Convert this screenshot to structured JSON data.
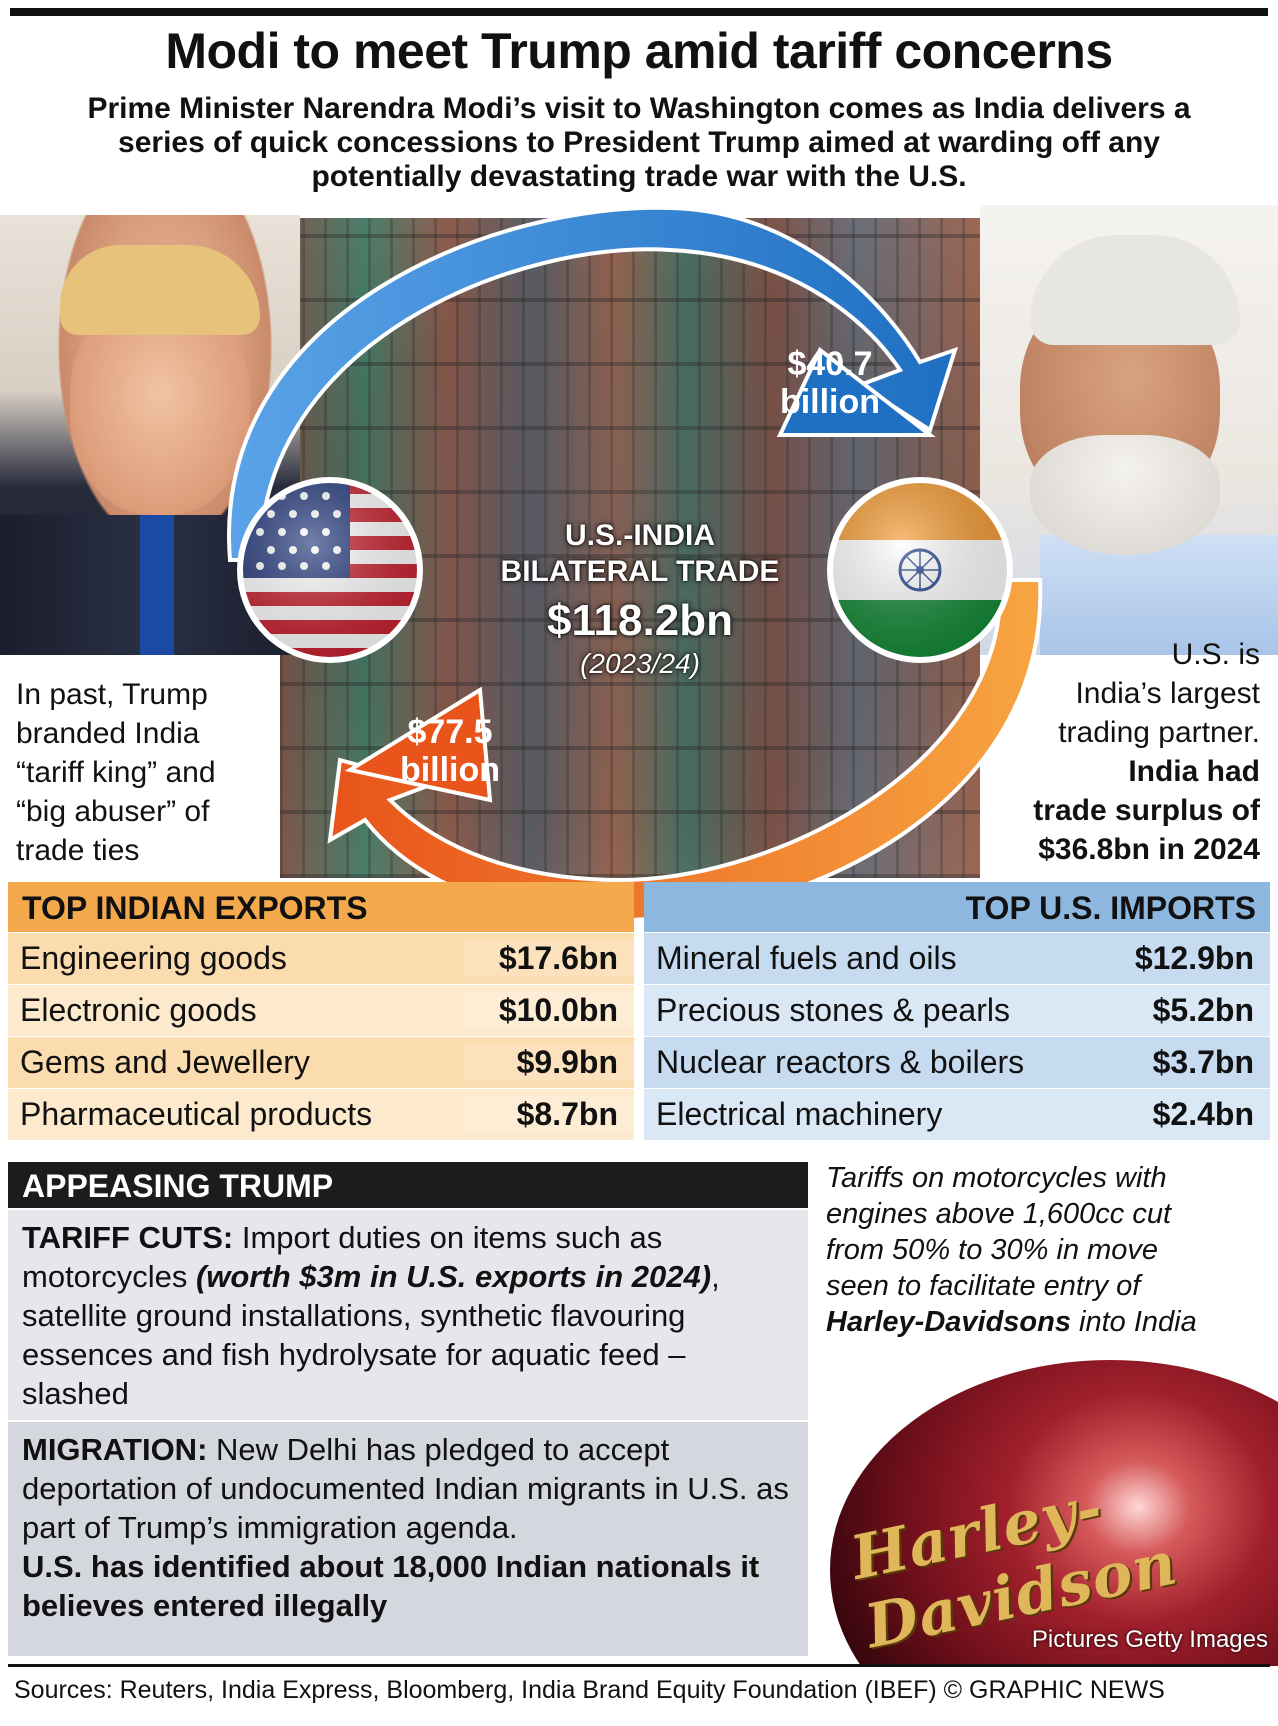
{
  "headline": "Modi to meet Trump amid tariff concerns",
  "standfirst": "Prime Minister Narendra Modi’s visit to Washington comes as India delivers a series of quick concessions to President Trump aimed at warding off any potentially devastating trade war with the U.S.",
  "hero": {
    "trade_title_line1": "U.S.-INDIA",
    "trade_title_line2": "BILATERAL TRADE",
    "trade_value": "$118.2bn",
    "trade_year": "(2023/24)",
    "us_to_india_line1": "$40.7",
    "us_to_india_line2": "billion",
    "india_to_us_line1": "$77.5",
    "india_to_us_line2": "billion",
    "arrow_colors": {
      "us_to_india": "#2a7fd1",
      "india_to_us": "#f0781c"
    }
  },
  "left_note": [
    "In past, Trump",
    "branded India",
    "“tariff king” and",
    "“big abuser” of",
    "trade ties"
  ],
  "right_note": {
    "plain": [
      "U.S. is",
      "India’s largest",
      "trading partner."
    ],
    "bold": [
      "India had",
      "trade surplus of",
      "$36.8bn in 2024"
    ]
  },
  "exports": {
    "title": "TOP INDIAN EXPORTS",
    "rows": [
      {
        "label": "Engineering goods",
        "value": "$17.6bn"
      },
      {
        "label": "Electronic goods",
        "value": "$10.0bn"
      },
      {
        "label": "Gems and Jewellery",
        "value": "$9.9bn"
      },
      {
        "label": "Pharmaceutical products",
        "value": "$8.7bn"
      }
    ]
  },
  "imports": {
    "title": "TOP U.S. IMPORTS",
    "rows": [
      {
        "label": "Mineral fuels and oils",
        "value": "$12.9bn"
      },
      {
        "label": "Precious stones & pearls",
        "value": "$5.2bn"
      },
      {
        "label": "Nuclear reactors & boilers",
        "value": "$3.7bn"
      },
      {
        "label": "Electrical machinery",
        "value": "$2.4bn"
      }
    ]
  },
  "appeasing": {
    "title": "APPEASING TRUMP",
    "tariff_head": "TARIFF CUTS:",
    "tariff_text1": " Import duties on items such as motorcycles ",
    "tariff_emph": "(worth $3m in U.S. exports in 2024)",
    "tariff_text2": ", satellite ground installations, synthetic flavouring essences and fish hydrolysate for aquatic feed – slashed",
    "migration_head": "MIGRATION:",
    "migration_text": " New Delhi has pledged to accept deportation of undocumented Indian migrants in U.S. as part of Trump’s immigration agenda.",
    "migration_bold": "U.S. has identified about 18,000 Indian nationals it believes entered illegally"
  },
  "moto_note": {
    "text1": "Tariffs on motorcycles with engines above 1,600cc cut from 50% to 30% in move seen to facilitate entry of ",
    "bold": "Harley-Davidsons",
    "text2": " into India"
  },
  "moto_logo": "Harley-Davidson",
  "photo_credit": "Pictures Getty Images",
  "sources": "Sources: Reuters, India Express, Bloomberg, India Brand Equity Foundation (IBEF) © GRAPHIC NEWS"
}
